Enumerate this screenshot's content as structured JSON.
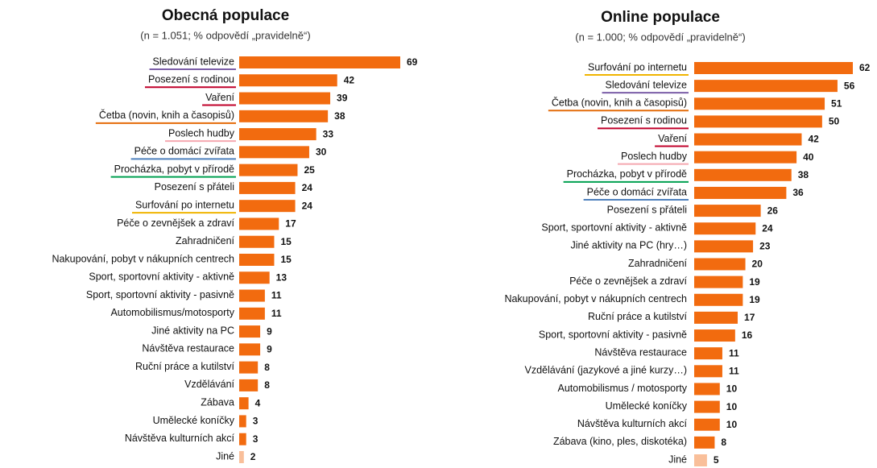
{
  "chart_data": [
    {
      "type": "hbar",
      "title": "Obecná populace",
      "subtitle": "(n = 1.051; % odpovědí „pravidelně“)",
      "categories": [
        "Sledování televize",
        "Posezení s rodinou",
        "Vaření",
        "Četba (novin, knih a časopisů)",
        "Poslech hudby",
        "Péče o domácí zvířata",
        "Procházka, pobyt v přírodě",
        "Posezení s přáteli",
        "Surfování po internetu",
        "Péče o zevnějšek a zdraví",
        "Zahradničení",
        "Nakupování, pobyt v nákupních centrech",
        "Sport, sportovní aktivity - aktivně",
        "Sport, sportovní aktivity - pasivně",
        "Automobilismus/motosporty",
        "Jiné aktivity na PC",
        "Návštěva restaurace",
        "Ruční práce a kutilství",
        "Vzdělávání",
        "Zábava",
        "Umělecké koníčky",
        "Návštěva kulturních akcí",
        "Jiné"
      ],
      "values": [
        69,
        42,
        39,
        38,
        33,
        30,
        25,
        24,
        24,
        17,
        15,
        15,
        13,
        11,
        11,
        9,
        9,
        8,
        8,
        4,
        3,
        3,
        2
      ],
      "colors": [
        "#f26b0f",
        "#f26b0f",
        "#f26b0f",
        "#f26b0f",
        "#f26b0f",
        "#f26b0f",
        "#f26b0f",
        "#f26b0f",
        "#f26b0f",
        "#f26b0f",
        "#f26b0f",
        "#f26b0f",
        "#f26b0f",
        "#f26b0f",
        "#f26b0f",
        "#f26b0f",
        "#f26b0f",
        "#f26b0f",
        "#f26b0f",
        "#f26b0f",
        "#f26b0f",
        "#f26b0f",
        "#f9bf9a"
      ],
      "label_underlines": [
        "#7b5ea7",
        "#c0002a",
        "#c0002a",
        "#e46c0a",
        "#f4a8b0",
        "#4f81bd",
        "#00a050",
        null,
        "#f0b400",
        null,
        null,
        null,
        null,
        null,
        null,
        null,
        null,
        null,
        null,
        null,
        null,
        null,
        null
      ]
    },
    {
      "type": "hbar",
      "title": "Online populace",
      "subtitle": "(n = 1.000; % odpovědí „pravidelně“)",
      "categories": [
        "Surfování po internetu",
        "Sledování televize",
        "Četba (novin, knih a časopisů)",
        "Posezení s rodinou",
        "Vaření",
        "Poslech hudby",
        "Procházka, pobyt v přírodě",
        "Péče o domácí zvířata",
        "Posezení s přáteli",
        "Sport, sportovní aktivity - aktivně",
        "Jiné aktivity na PC (hry…)",
        "Zahradničení",
        "Péče o zevnějšek a zdraví",
        "Nakupování, pobyt v nákupních centrech",
        "Ruční práce a kutilství",
        "Sport, sportovní aktivity - pasivně",
        "Návštěva restaurace",
        "Vzdělávání (jazykové a jiné kurzy…)",
        "Automobilismus / motosporty",
        "Umělecké koníčky",
        "Návštěva kulturních akcí",
        "Zábava (kino, ples, diskotéka)",
        "Jiné"
      ],
      "values": [
        62,
        56,
        51,
        50,
        42,
        40,
        38,
        36,
        26,
        24,
        23,
        20,
        19,
        19,
        17,
        16,
        11,
        11,
        10,
        10,
        10,
        8,
        5
      ],
      "colors": [
        "#f26b0f",
        "#f26b0f",
        "#f26b0f",
        "#f26b0f",
        "#f26b0f",
        "#f26b0f",
        "#f26b0f",
        "#f26b0f",
        "#f26b0f",
        "#f26b0f",
        "#f26b0f",
        "#f26b0f",
        "#f26b0f",
        "#f26b0f",
        "#f26b0f",
        "#f26b0f",
        "#f26b0f",
        "#f26b0f",
        "#f26b0f",
        "#f26b0f",
        "#f26b0f",
        "#f26b0f",
        "#f9bf9a"
      ],
      "label_underlines": [
        "#f0b400",
        "#7b5ea7",
        "#e46c0a",
        "#c0002a",
        "#c0002a",
        "#f4a8b0",
        "#00a050",
        "#4f81bd",
        null,
        null,
        null,
        null,
        null,
        null,
        null,
        null,
        null,
        null,
        null,
        null,
        null,
        null,
        null
      ]
    }
  ]
}
